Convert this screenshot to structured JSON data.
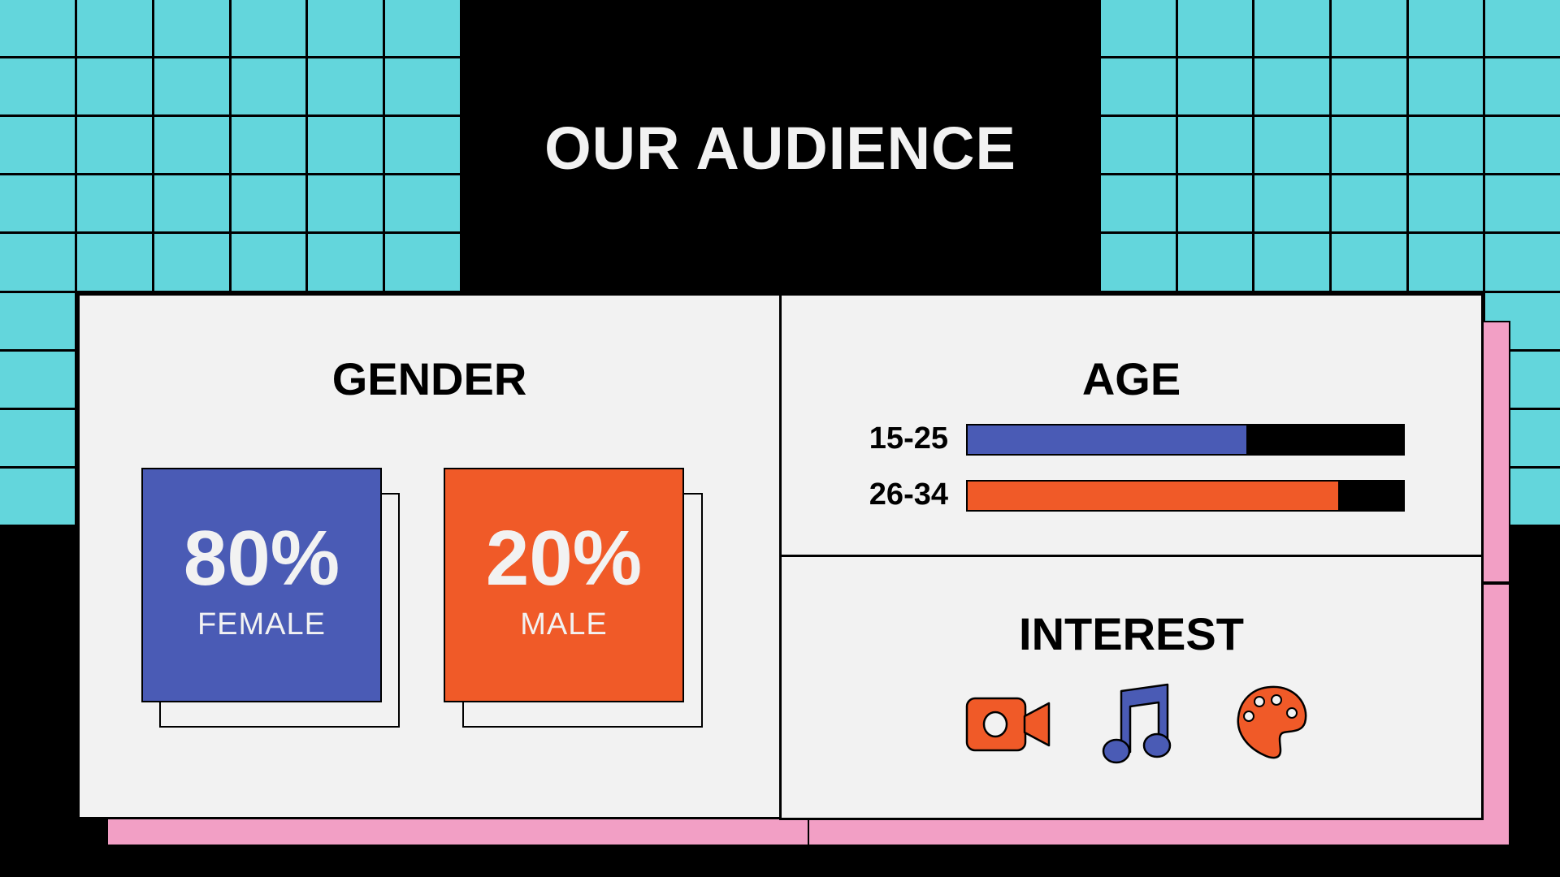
{
  "title": "OUR AUDIENCE",
  "colors": {
    "cyan": "#63d6dc",
    "pink": "#f29fc5",
    "blue": "#4a5bb5",
    "orange": "#f05a28",
    "panel": "#f2f2f2"
  },
  "gender": {
    "heading": "GENDER",
    "items": [
      {
        "percent": "80%",
        "label": "FEMALE",
        "color": "#4a5bb5"
      },
      {
        "percent": "20%",
        "label": "MALE",
        "color": "#f05a28"
      }
    ]
  },
  "age": {
    "heading": "AGE",
    "bars": [
      {
        "label": "15-25",
        "fraction": 0.64,
        "color": "#4a5bb5"
      },
      {
        "label": "26-34",
        "fraction": 0.85,
        "color": "#f05a28"
      }
    ]
  },
  "interest": {
    "heading": "INTEREST",
    "icons": [
      "video-camera-icon",
      "music-note-icon",
      "paint-palette-icon"
    ]
  }
}
